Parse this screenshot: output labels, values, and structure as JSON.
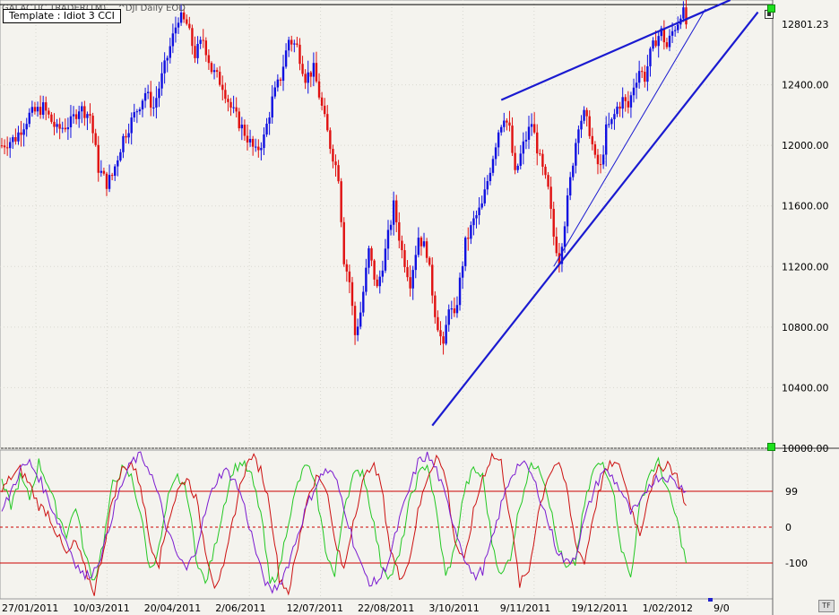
{
  "header": {
    "app_title": "GALACTIC TRADER(TM)",
    "symbol": "^DJI Daily EOD",
    "template": "Template : Idiot 3 CCI"
  },
  "price_label": "12801.23",
  "tf_label": "TF",
  "colors": {
    "background": "#f4f3ee",
    "up_bar": "#1010e0",
    "down_bar": "#e01010",
    "trendline": "#1a1ad0",
    "cci_green": "#22c822",
    "cci_red": "#cc1010",
    "cci_purple": "#7a1ad0",
    "level_line": "#cc0000"
  },
  "chart_data": [
    {
      "type": "candlestick",
      "title": "^DJI Daily EOD",
      "x_tick_labels": [
        "27/01/2011",
        "10/03/2011",
        "20/04/2011",
        "2/06/2011",
        "12/07/2011",
        "22/08/2011",
        "3/10/2011",
        "9/11/2011",
        "19/12/2011",
        "1/02/2012",
        "9/0"
      ],
      "y_tick_labels": [
        "12400.00",
        "12000.00",
        "11600.00",
        "11200.00",
        "10800.00",
        "10400.00",
        "10000.00"
      ],
      "ylim": [
        10000,
        12960
      ],
      "grid": true,
      "close_path": [
        [
          0,
          12000
        ],
        [
          5,
          12050
        ],
        [
          10,
          12200
        ],
        [
          15,
          12250
        ],
        [
          20,
          12100
        ],
        [
          25,
          12150
        ],
        [
          28,
          12250
        ],
        [
          32,
          12200
        ],
        [
          35,
          11850
        ],
        [
          38,
          11750
        ],
        [
          40,
          11800
        ],
        [
          44,
          12050
        ],
        [
          48,
          12200
        ],
        [
          52,
          12350
        ],
        [
          55,
          12250
        ],
        [
          58,
          12450
        ],
        [
          61,
          12650
        ],
        [
          64,
          12850
        ],
        [
          67,
          12800
        ],
        [
          70,
          12600
        ],
        [
          73,
          12700
        ],
        [
          76,
          12500
        ],
        [
          80,
          12400
        ],
        [
          83,
          12250
        ],
        [
          86,
          12150
        ],
        [
          89,
          12050
        ],
        [
          92,
          11950
        ],
        [
          95,
          12050
        ],
        [
          98,
          12300
        ],
        [
          101,
          12450
        ],
        [
          104,
          12700
        ],
        [
          107,
          12650
        ],
        [
          110,
          12450
        ],
        [
          113,
          12500
        ],
        [
          116,
          12250
        ],
        [
          119,
          12000
        ],
        [
          122,
          11800
        ],
        [
          124,
          11250
        ],
        [
          126,
          11100
        ],
        [
          128,
          10750
        ],
        [
          130,
          10900
        ],
        [
          133,
          11300
        ],
        [
          136,
          11050
        ],
        [
          139,
          11300
        ],
        [
          142,
          11600
        ],
        [
          145,
          11300
        ],
        [
          148,
          11100
        ],
        [
          151,
          11400
        ],
        [
          154,
          11300
        ],
        [
          157,
          10900
        ],
        [
          160,
          10650
        ],
        [
          162,
          10950
        ],
        [
          164,
          10850
        ],
        [
          166,
          11100
        ],
        [
          168,
          11350
        ],
        [
          171,
          11500
        ],
        [
          174,
          11600
        ],
        [
          177,
          11850
        ],
        [
          180,
          12100
        ],
        [
          182,
          12200
        ],
        [
          184,
          12100
        ],
        [
          186,
          11800
        ],
        [
          189,
          12000
        ],
        [
          192,
          12150
        ],
        [
          195,
          11900
        ],
        [
          198,
          11700
        ],
        [
          200,
          11400
        ],
        [
          202,
          11250
        ],
        [
          204,
          11500
        ],
        [
          207,
          11900
        ],
        [
          209,
          12150
        ],
        [
          211,
          12200
        ],
        [
          213,
          12100
        ],
        [
          215,
          11900
        ],
        [
          217,
          11850
        ],
        [
          219,
          12100
        ],
        [
          221,
          12150
        ],
        [
          223,
          12250
        ],
        [
          225,
          12300
        ],
        [
          227,
          12250
        ],
        [
          229,
          12400
        ],
        [
          231,
          12500
        ],
        [
          233,
          12450
        ],
        [
          235,
          12600
        ],
        [
          237,
          12700
        ],
        [
          239,
          12750
        ],
        [
          241,
          12650
        ],
        [
          243,
          12750
        ],
        [
          245,
          12820
        ],
        [
          246,
          12880
        ],
        [
          247,
          12870
        ],
        [
          248,
          12801
        ]
      ],
      "trendlines": [
        {
          "x1": 181,
          "y1": 12300,
          "x2": 264,
          "y2": 12960
        },
        {
          "x1": 156,
          "y1": 10150,
          "x2": 274,
          "y2": 12880
        },
        {
          "x1": 200,
          "y1": 11200,
          "x2": 255,
          "y2": 12900
        }
      ],
      "last_price": 12801.23
    },
    {
      "type": "line",
      "title": "CCI",
      "y_tick_labels": [
        "99",
        "0",
        "-100"
      ],
      "levels": [
        100,
        0,
        -100
      ],
      "ylim": [
        -200,
        215
      ],
      "series": [
        {
          "color": "#22c822",
          "values": [
            120,
            60,
            140,
            80,
            180,
            120,
            40,
            -20,
            60,
            -80,
            -150,
            -40,
            120,
            160,
            140,
            40,
            -120,
            -60,
            80,
            140,
            100,
            -80,
            -160,
            -60,
            60,
            160,
            180,
            140,
            40,
            -160,
            -120,
            20,
            120,
            180,
            100,
            -60,
            -140,
            60,
            140,
            160,
            40,
            -100,
            -140,
            -80,
            60,
            140,
            180,
            40,
            -140,
            -60,
            100,
            160,
            140,
            -40,
            -140,
            -80,
            60,
            160,
            180,
            100,
            -40,
            -120,
            -100,
            60,
            160,
            180,
            120,
            -60,
            -140,
            60,
            150,
            180,
            100,
            20,
            -100
          ]
        },
        {
          "color": "#cc1010",
          "values": [
            100,
            140,
            160,
            120,
            60,
            40,
            -20,
            -80,
            -40,
            -120,
            -180,
            -60,
            80,
            160,
            180,
            120,
            -40,
            -100,
            20,
            100,
            140,
            80,
            -60,
            -160,
            -120,
            20,
            140,
            200,
            160,
            60,
            -140,
            -180,
            -60,
            80,
            140,
            120,
            -40,
            -120,
            20,
            120,
            180,
            120,
            -60,
            -140,
            -100,
            40,
            140,
            200,
            140,
            -40,
            -100,
            40,
            140,
            200,
            180,
            20,
            -160,
            -120,
            40,
            140,
            180,
            120,
            -40,
            -100,
            40,
            140,
            180,
            160,
            60,
            -20,
            100,
            160,
            180,
            140,
            60
          ]
        },
        {
          "color": "#7a1ad0",
          "values": [
            40,
            100,
            160,
            180,
            140,
            80,
            20,
            -40,
            -100,
            -140,
            -120,
            -60,
            40,
            120,
            180,
            200,
            160,
            80,
            -20,
            -80,
            -120,
            -60,
            40,
            120,
            160,
            140,
            80,
            -20,
            -120,
            -180,
            -160,
            -100,
            -20,
            60,
            120,
            160,
            140,
            60,
            -40,
            -120,
            -160,
            -140,
            -80,
            20,
            100,
            180,
            200,
            160,
            80,
            0,
            -80,
            -140,
            -120,
            -40,
            60,
            140,
            180,
            160,
            100,
            20,
            -60,
            -100,
            -80,
            20,
            100,
            160,
            140,
            100,
            40,
            60,
            120,
            140,
            140,
            120,
            100
          ]
        }
      ]
    }
  ]
}
